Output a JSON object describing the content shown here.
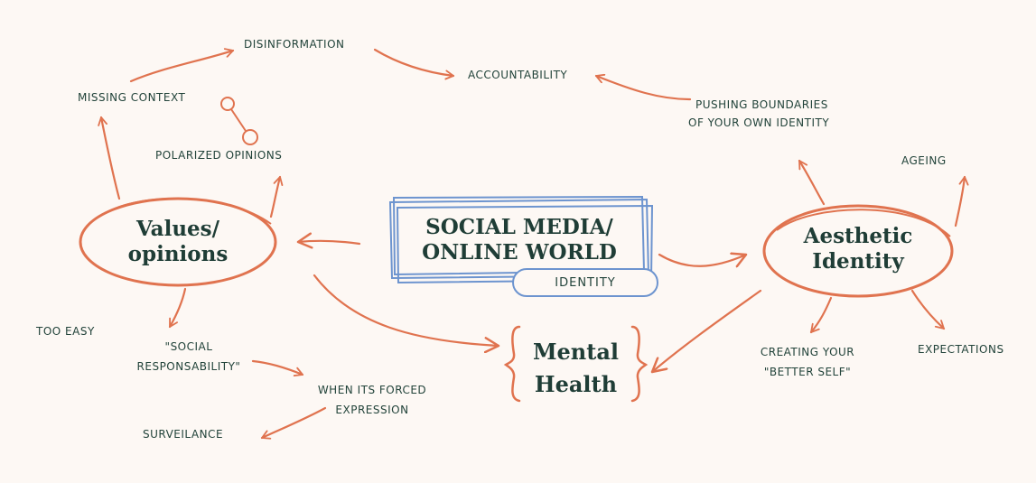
{
  "colors": {
    "background": "#fdf8f4",
    "accent_orange": "#e0734f",
    "accent_blue": "#6d94cf",
    "text_dark_green": "#22433a"
  },
  "center": {
    "title_line1": "SOCIAL MEDIA/",
    "title_line2": "ONLINE WORLD",
    "tag": "IDENTITY"
  },
  "values_node": {
    "line1": "Values/",
    "line2": "opinions"
  },
  "aesthetic_node": {
    "line1": "Aesthetic",
    "line2": "Identity"
  },
  "mental_node": {
    "line1": "Mental",
    "line2": "Health"
  },
  "labels": {
    "disinformation": "DISINFORMATION",
    "accountability": "ACCOUNTABILITY",
    "missing_context": "MISSING CONTEXT",
    "polarized_opinions": "POLARIZED OPINIONS",
    "pushing_line1": "PUSHING BOUNDARIES",
    "pushing_line2": "OF YOUR OWN IDENTITY",
    "ageing": "AGEING",
    "too_easy": "TOO EASY",
    "social_line1": "\"SOCIAL",
    "social_line2": "RESPONSABILITY\"",
    "forced_line1": "WHEN ITS FORCED",
    "forced_line2": "EXPRESSION",
    "surveilance": "SURVEILANCE",
    "creating_line1": "CREATING YOUR",
    "creating_line2": "\"BETTER SELF\"",
    "expectations": "EXPECTATIONS"
  }
}
